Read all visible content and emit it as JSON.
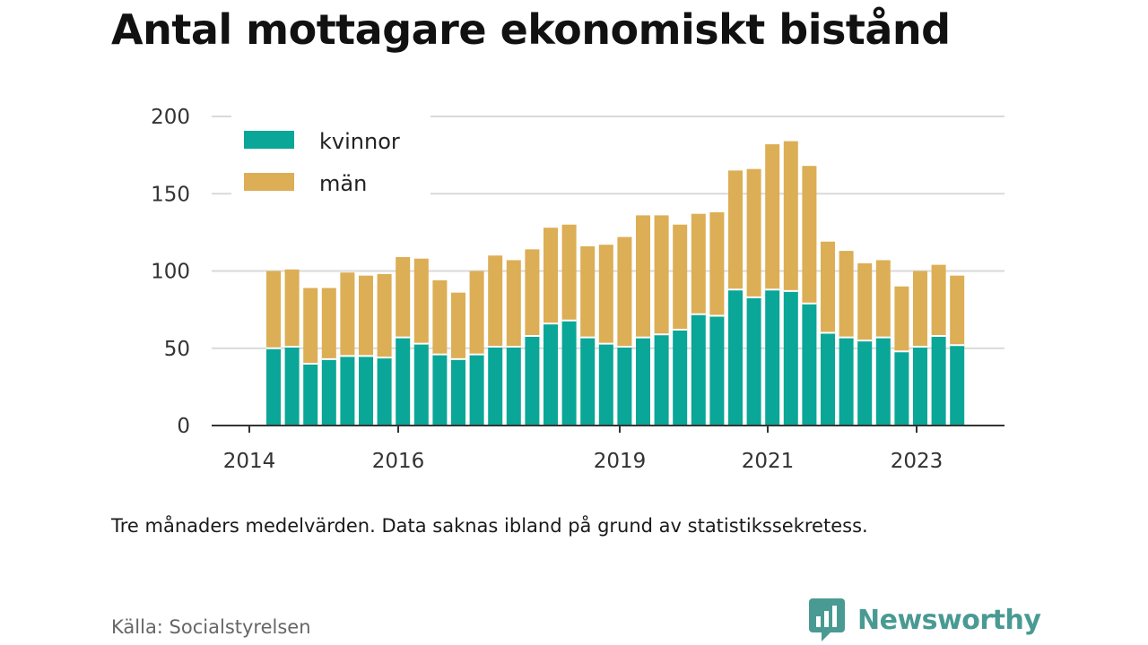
{
  "title": "Antal mottagare ekonomiskt bistånd",
  "note": "Tre månaders medelvärden. Data saknas ibland på grund av statistikssekretess.",
  "source": "Källa: Socialstyrelsen",
  "brand": {
    "name": "Newsworthy",
    "logo_icon": "bar-chart-speech-bubble-icon"
  },
  "colors": {
    "kvinnor": "#0aa698",
    "man": "#dcae55",
    "grid": "#d9d9d9",
    "axis": "#333333",
    "brand": "#4a9a94"
  },
  "chart_data": {
    "type": "bar",
    "stacked": true,
    "ylim": [
      0,
      200
    ],
    "yticks": [
      0,
      50,
      100,
      150,
      200
    ],
    "xtick_labels": [
      "2014",
      "2016",
      "2019",
      "2021",
      "2023"
    ],
    "xlabel": "",
    "ylabel": "",
    "grid": true,
    "legend_position": "top-left",
    "legend": [
      "kvinnor",
      "män"
    ],
    "series": [
      {
        "name": "kvinnor",
        "values": [
          50,
          51,
          40,
          43,
          45,
          45,
          44,
          57,
          53,
          46,
          43,
          46,
          51,
          51,
          58,
          66,
          68,
          57,
          53,
          51,
          57,
          59,
          62,
          72,
          71,
          88,
          83,
          88,
          87,
          79,
          60,
          57,
          55,
          57,
          48,
          51,
          58,
          52
        ]
      },
      {
        "name": "män",
        "values": [
          50,
          50,
          49,
          46,
          54,
          52,
          54,
          52,
          55,
          48,
          43,
          54,
          59,
          56,
          56,
          62,
          62,
          59,
          64,
          71,
          79,
          77,
          68,
          65,
          67,
          77,
          83,
          94,
          97,
          89,
          59,
          56,
          50,
          50,
          42,
          49,
          46,
          45
        ]
      }
    ]
  }
}
